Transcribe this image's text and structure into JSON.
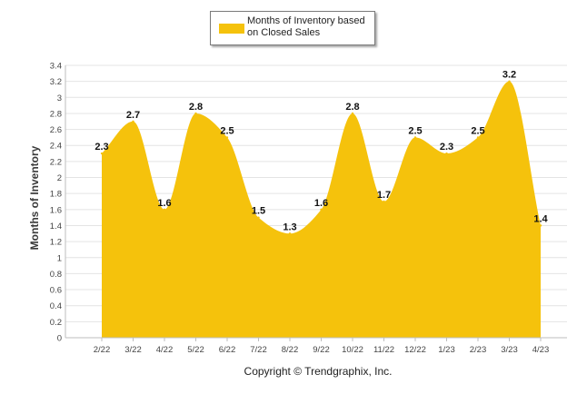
{
  "chart_data": {
    "type": "area",
    "categories": [
      "2/22",
      "3/22",
      "4/22",
      "5/22",
      "6/22",
      "7/22",
      "8/22",
      "9/22",
      "10/22",
      "11/22",
      "12/22",
      "1/23",
      "2/23",
      "3/23",
      "4/23"
    ],
    "series": [
      {
        "name": "Months of Inventory based on Closed Sales",
        "values": [
          2.3,
          2.7,
          1.6,
          2.8,
          2.5,
          1.5,
          1.3,
          1.6,
          2.8,
          1.7,
          2.5,
          2.3,
          2.5,
          3.2,
          1.4
        ],
        "color": "#f5c20c"
      }
    ],
    "data_labels": [
      "2.3",
      "2.7",
      "1.6",
      "2.8",
      "2.5",
      "1.5",
      "1.3",
      "1.6",
      "2.8",
      "1.7",
      "2.5",
      "2.3",
      "2.5",
      "3.2",
      "1.4"
    ],
    "ylabel": "Months of Inventory",
    "xlabel": "",
    "ylim": [
      0,
      3.4
    ],
    "yticks": [
      "0",
      "0.2",
      "0.4",
      "0.6",
      "0.8",
      "1",
      "1.2",
      "1.4",
      "1.6",
      "1.8",
      "2",
      "2.2",
      "2.4",
      "2.6",
      "2.8",
      "3",
      "3.2",
      "3.4"
    ],
    "grid": true,
    "legend_position": "top-center"
  },
  "legend": {
    "label": "Months of Inventory based on Closed Sales",
    "color": "#f5c20c"
  },
  "footer": {
    "copyright": "Copyright © Trendgraphix, Inc."
  }
}
